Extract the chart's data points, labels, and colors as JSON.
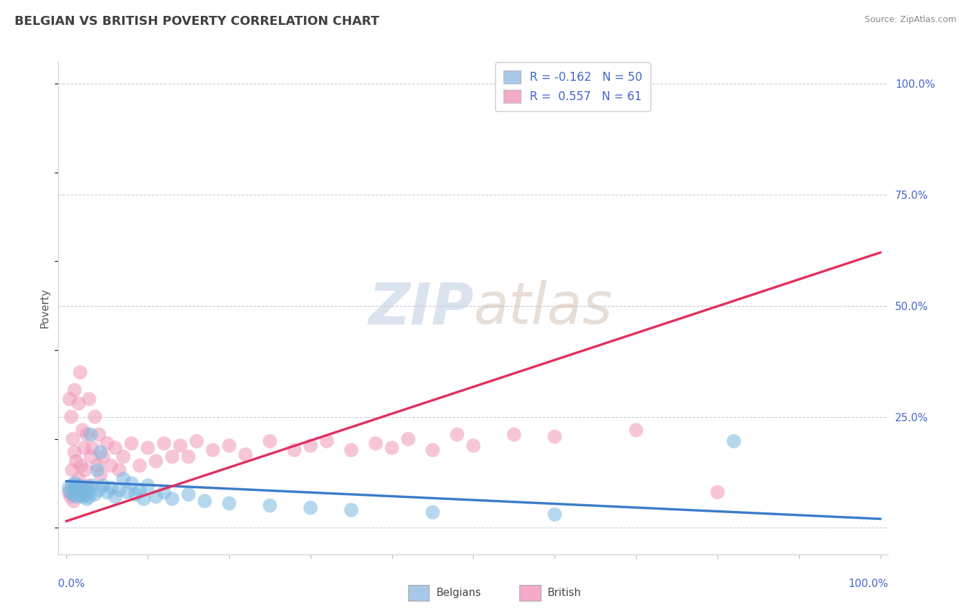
{
  "title": "BELGIAN VS BRITISH POVERTY CORRELATION CHART",
  "source": "Source: ZipAtlas.com",
  "ylabel": "Poverty",
  "legend_labels": [
    "Belgians",
    "British"
  ],
  "legend_patch_colors": [
    "#a8c8e8",
    "#f4aac8"
  ],
  "series_colors": [
    "#7ab8e0",
    "#f098b8"
  ],
  "trend_colors": [
    "#3b7cc9",
    "#e03060"
  ],
  "R_belgians": -0.162,
  "N_belgians": 50,
  "R_british": 0.557,
  "N_british": 61,
  "background_color": "#ffffff",
  "grid_color": "#c8c8d8",
  "title_color": "#404040",
  "axis_label_color": "#4466cc",
  "ytick_positions": [
    0.0,
    0.25,
    0.5,
    0.75,
    1.0
  ],
  "ytick_labels": [
    "",
    "25.0%",
    "50.0%",
    "75.0%",
    "100.0%"
  ],
  "ylim": [
    -0.06,
    1.05
  ],
  "xlim": [
    -0.01,
    1.01
  ],
  "belgians_x": [
    0.003,
    0.005,
    0.007,
    0.008,
    0.01,
    0.01,
    0.012,
    0.013,
    0.015,
    0.015,
    0.017,
    0.018,
    0.02,
    0.02,
    0.022,
    0.023,
    0.025,
    0.025,
    0.027,
    0.028,
    0.03,
    0.032,
    0.035,
    0.038,
    0.04,
    0.042,
    0.045,
    0.05,
    0.055,
    0.06,
    0.065,
    0.07,
    0.075,
    0.08,
    0.085,
    0.09,
    0.095,
    0.1,
    0.11,
    0.12,
    0.13,
    0.15,
    0.17,
    0.2,
    0.25,
    0.3,
    0.35,
    0.45,
    0.6,
    0.82
  ],
  "belgians_y": [
    0.09,
    0.08,
    0.095,
    0.075,
    0.085,
    0.1,
    0.07,
    0.09,
    0.08,
    0.095,
    0.075,
    0.085,
    0.07,
    0.09,
    0.08,
    0.075,
    0.09,
    0.065,
    0.085,
    0.07,
    0.21,
    0.095,
    0.075,
    0.13,
    0.085,
    0.17,
    0.095,
    0.08,
    0.09,
    0.07,
    0.085,
    0.11,
    0.08,
    0.1,
    0.075,
    0.085,
    0.065,
    0.095,
    0.07,
    0.08,
    0.065,
    0.075,
    0.06,
    0.055,
    0.05,
    0.045,
    0.04,
    0.035,
    0.03,
    0.195
  ],
  "british_x": [
    0.003,
    0.004,
    0.005,
    0.006,
    0.007,
    0.008,
    0.009,
    0.01,
    0.01,
    0.012,
    0.013,
    0.015,
    0.015,
    0.017,
    0.018,
    0.02,
    0.02,
    0.022,
    0.023,
    0.025,
    0.027,
    0.028,
    0.03,
    0.032,
    0.035,
    0.038,
    0.04,
    0.042,
    0.045,
    0.05,
    0.055,
    0.06,
    0.065,
    0.07,
    0.08,
    0.09,
    0.1,
    0.11,
    0.12,
    0.13,
    0.14,
    0.15,
    0.16,
    0.18,
    0.2,
    0.22,
    0.25,
    0.28,
    0.3,
    0.32,
    0.35,
    0.38,
    0.4,
    0.42,
    0.45,
    0.48,
    0.5,
    0.55,
    0.6,
    0.7,
    0.8
  ],
  "british_y": [
    0.08,
    0.29,
    0.07,
    0.25,
    0.13,
    0.2,
    0.06,
    0.17,
    0.31,
    0.15,
    0.09,
    0.28,
    0.11,
    0.35,
    0.14,
    0.22,
    0.08,
    0.18,
    0.13,
    0.21,
    0.095,
    0.29,
    0.16,
    0.18,
    0.25,
    0.14,
    0.21,
    0.12,
    0.16,
    0.19,
    0.14,
    0.18,
    0.13,
    0.16,
    0.19,
    0.14,
    0.18,
    0.15,
    0.19,
    0.16,
    0.185,
    0.16,
    0.195,
    0.175,
    0.185,
    0.165,
    0.195,
    0.175,
    0.185,
    0.195,
    0.175,
    0.19,
    0.18,
    0.2,
    0.175,
    0.21,
    0.185,
    0.21,
    0.205,
    0.22,
    0.08
  ],
  "bel_trend": [
    0.105,
    0.02
  ],
  "brit_trend": [
    0.015,
    0.62
  ]
}
